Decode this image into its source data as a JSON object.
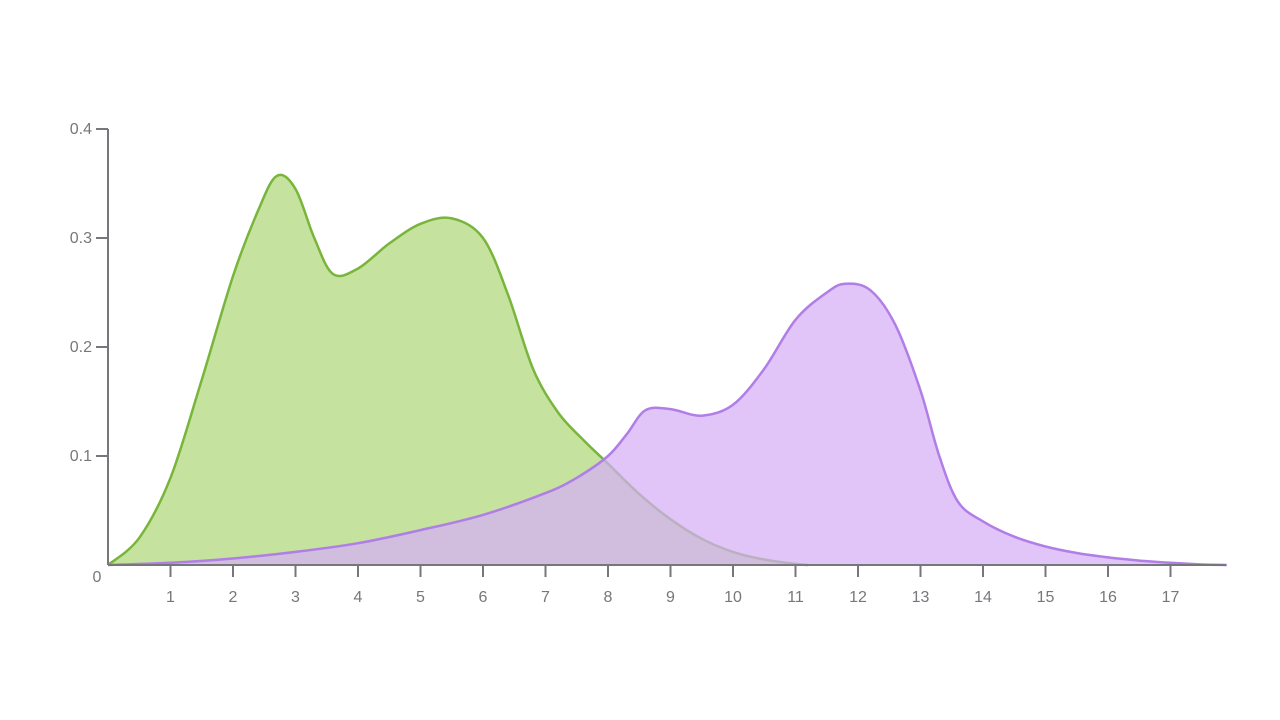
{
  "chart_data": {
    "type": "area",
    "xlim": [
      0,
      17.9
    ],
    "ylim": [
      0,
      0.4
    ],
    "x_ticks": [
      1,
      2,
      3,
      4,
      5,
      6,
      7,
      8,
      9,
      10,
      11,
      12,
      13,
      14,
      15,
      16,
      17
    ],
    "y_ticks": [
      0.1,
      0.2,
      0.3,
      0.4
    ],
    "origin_label": "0",
    "grid": false,
    "series": [
      {
        "color_fill": "#c5e29f",
        "color_line": "#78b53a",
        "points": [
          [
            0,
            0
          ],
          [
            0.5,
            0.025
          ],
          [
            1,
            0.08
          ],
          [
            1.5,
            0.17
          ],
          [
            2,
            0.265
          ],
          [
            2.4,
            0.325
          ],
          [
            2.7,
            0.357
          ],
          [
            3,
            0.345
          ],
          [
            3.3,
            0.3
          ],
          [
            3.6,
            0.267
          ],
          [
            4,
            0.272
          ],
          [
            4.5,
            0.295
          ],
          [
            5,
            0.313
          ],
          [
            5.5,
            0.318
          ],
          [
            6,
            0.3
          ],
          [
            6.4,
            0.248
          ],
          [
            6.8,
            0.18
          ],
          [
            7.2,
            0.14
          ],
          [
            7.6,
            0.115
          ],
          [
            8,
            0.093
          ],
          [
            8.5,
            0.065
          ],
          [
            9,
            0.042
          ],
          [
            9.5,
            0.024
          ],
          [
            10,
            0.012
          ],
          [
            10.5,
            0.005
          ],
          [
            11,
            0.001
          ],
          [
            11.2,
            0
          ]
        ]
      },
      {
        "color_fill": "#d5aff5",
        "color_line": "#b07ee6",
        "points": [
          [
            0,
            0
          ],
          [
            1,
            0.002
          ],
          [
            2,
            0.006
          ],
          [
            3,
            0.012
          ],
          [
            4,
            0.02
          ],
          [
            5,
            0.032
          ],
          [
            6,
            0.046
          ],
          [
            7,
            0.066
          ],
          [
            7.5,
            0.08
          ],
          [
            8,
            0.1
          ],
          [
            8.3,
            0.12
          ],
          [
            8.6,
            0.142
          ],
          [
            9,
            0.143
          ],
          [
            9.5,
            0.137
          ],
          [
            10,
            0.147
          ],
          [
            10.5,
            0.18
          ],
          [
            11,
            0.225
          ],
          [
            11.5,
            0.25
          ],
          [
            11.8,
            0.258
          ],
          [
            12.2,
            0.252
          ],
          [
            12.6,
            0.22
          ],
          [
            13,
            0.16
          ],
          [
            13.3,
            0.1
          ],
          [
            13.6,
            0.058
          ],
          [
            14,
            0.04
          ],
          [
            14.5,
            0.026
          ],
          [
            15,
            0.017
          ],
          [
            15.5,
            0.011
          ],
          [
            16,
            0.007
          ],
          [
            16.5,
            0.004
          ],
          [
            17,
            0.002
          ],
          [
            17.5,
            0.0005
          ],
          [
            17.9,
            0
          ]
        ]
      }
    ]
  }
}
